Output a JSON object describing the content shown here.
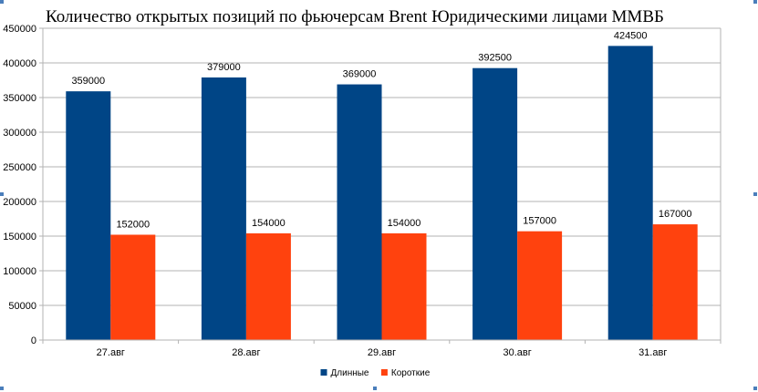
{
  "chart_data": {
    "type": "bar",
    "title": "Количество открытых позиций по фьючерсам Brent Юридическими лицами ММВБ",
    "categories": [
      "27.авг",
      "28.авг",
      "29.авг",
      "30.авг",
      "31.авг"
    ],
    "series": [
      {
        "name": "Длинные",
        "values": [
          359000,
          379000,
          369000,
          392500,
          424500
        ],
        "color": "#004586"
      },
      {
        "name": "Короткие",
        "values": [
          152000,
          154000,
          154000,
          157000,
          167000
        ],
        "color": "#ff420e"
      }
    ],
    "ylim": [
      0,
      450000
    ],
    "yticks": [
      0,
      50000,
      100000,
      150000,
      200000,
      250000,
      300000,
      350000,
      400000,
      450000
    ],
    "grid": true,
    "legend": "bottom",
    "data_labels": true
  },
  "colors": {
    "grid": "#b3b3b3",
    "axis": "#b3b3b3",
    "selection_handle": "#4a7ebb"
  }
}
